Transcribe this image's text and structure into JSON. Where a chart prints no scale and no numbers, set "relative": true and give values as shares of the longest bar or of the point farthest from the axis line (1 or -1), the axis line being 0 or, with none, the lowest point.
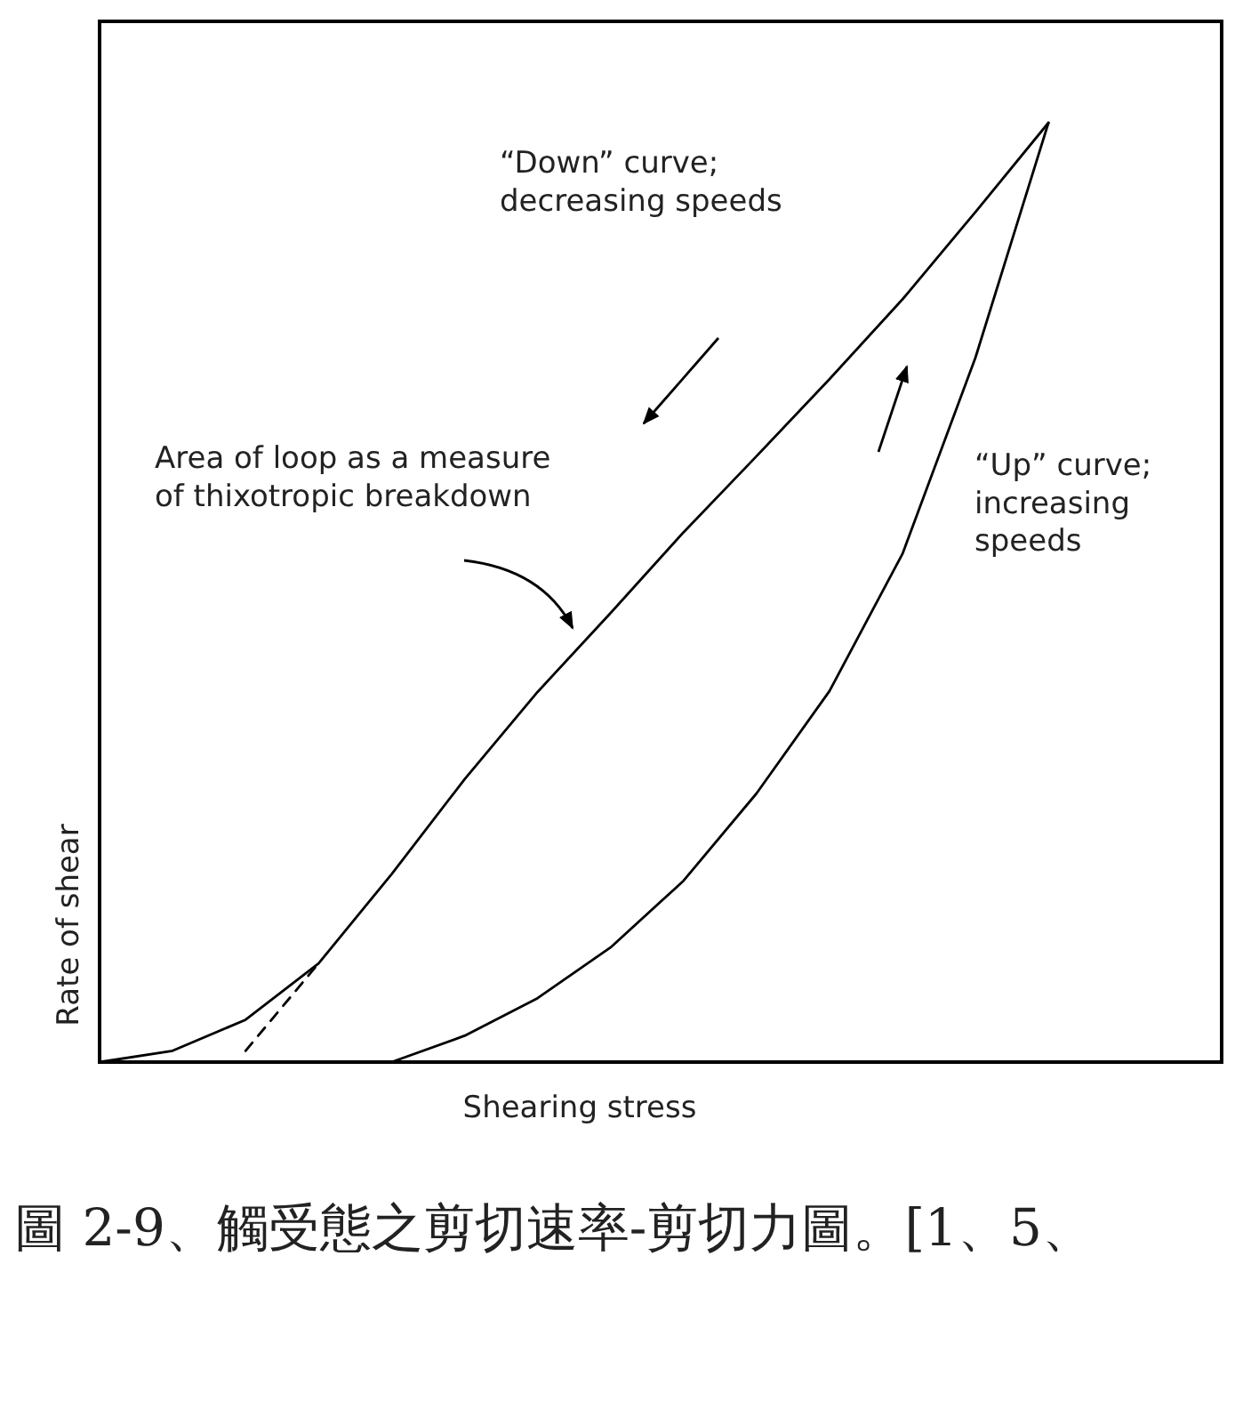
{
  "chart_data": {
    "type": "line",
    "relative": true,
    "xlabel": "Shearing stress",
    "ylabel": "Rate of shear",
    "marker": "none",
    "categories": [
      null,
      null,
      null,
      null,
      null,
      null,
      null,
      null,
      null,
      null,
      null,
      null,
      null,
      null
    ],
    "series": [
      {
        "color": "#000000",
        "line_style": "solid",
        "values": [
          0.0,
          0.012,
          0.045,
          0.105,
          0.2,
          0.301,
          0.394,
          0.478,
          0.564,
          0.645,
          0.727,
          0.812,
          0.905,
          1.0
        ]
      },
      {
        "color": "#000000",
        "line_style": "solid",
        "values": [
          null,
          null,
          null,
          null,
          0.0,
          0.028,
          0.068,
          0.122,
          0.193,
          0.286,
          0.395,
          0.541,
          0.75,
          1.0
        ]
      },
      {
        "color": "#000000",
        "line_style": "dashed",
        "values": [
          null,
          null,
          0.012,
          0.105,
          null,
          null,
          null,
          null,
          null,
          null,
          null,
          null,
          null,
          null
        ]
      }
    ],
    "annotations": [
      "“Down” curve;\ndecreasing speeds",
      "Area of loop as a measure\nof thixotropic breakdown",
      "“Up” curve;\nincreasing\nspeeds",
      "圖 2-9、觸受態之剪切速率-剪切力圖。[1、5、"
    ]
  }
}
